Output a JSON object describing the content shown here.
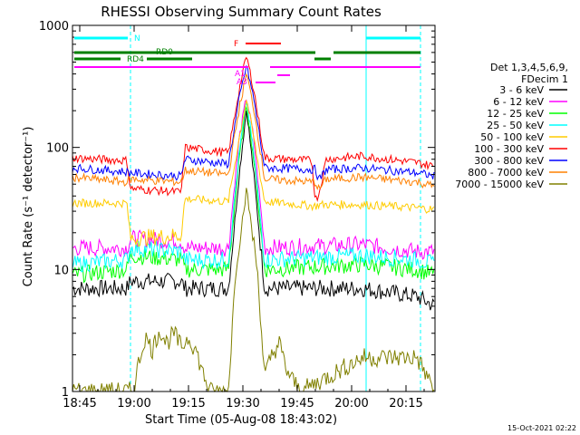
{
  "chart_data": {
    "type": "line",
    "title": "RHESSI Observing Summary Count Rates",
    "xlabel": "Start Time (05-Aug-08 18:43:02)",
    "ylabel": "Count Rate (s⁻¹ detector⁻¹)",
    "y_scale": "log",
    "ylim": [
      1,
      1000
    ],
    "xlim_minutes": [
      0,
      100
    ],
    "x_ticks": [
      {
        "m": 2,
        "label": "18:45"
      },
      {
        "m": 17,
        "label": "19:00"
      },
      {
        "m": 32,
        "label": "19:15"
      },
      {
        "m": 47,
        "label": "19:30"
      },
      {
        "m": 62,
        "label": "19:45"
      },
      {
        "m": 77,
        "label": "20:00"
      },
      {
        "m": 92,
        "label": "20:15"
      }
    ],
    "y_ticks": [
      {
        "v": 1,
        "label": "1"
      },
      {
        "v": 10,
        "label": "10"
      },
      {
        "v": 100,
        "label": "100"
      },
      {
        "v": 1000,
        "label": "1000"
      }
    ],
    "legend_header": [
      "Det 1,3,4,5,6,9,",
      "FDecim 1"
    ],
    "series": [
      {
        "name": "3 - 6 keV",
        "color": "#000000",
        "points": [
          [
            0,
            7
          ],
          [
            15,
            7
          ],
          [
            16,
            8
          ],
          [
            30,
            8
          ],
          [
            31,
            7
          ],
          [
            43,
            7
          ],
          [
            46,
            60
          ],
          [
            48,
            210
          ],
          [
            50,
            60
          ],
          [
            53,
            7
          ],
          [
            80,
            7
          ],
          [
            95,
            6
          ],
          [
            100,
            5
          ]
        ]
      },
      {
        "name": "6 - 12 keV",
        "color": "#ff00ff",
        "points": [
          [
            0,
            15
          ],
          [
            15,
            15
          ],
          [
            16,
            18
          ],
          [
            30,
            17
          ],
          [
            31,
            15
          ],
          [
            43,
            15
          ],
          [
            46,
            120
          ],
          [
            48,
            260
          ],
          [
            50,
            120
          ],
          [
            53,
            15
          ],
          [
            80,
            16
          ],
          [
            95,
            14
          ],
          [
            100,
            14
          ]
        ]
      },
      {
        "name": "12 - 25 keV",
        "color": "#00ff00",
        "points": [
          [
            0,
            9
          ],
          [
            15,
            10
          ],
          [
            16,
            13
          ],
          [
            30,
            12
          ],
          [
            31,
            10
          ],
          [
            43,
            10
          ],
          [
            46,
            80
          ],
          [
            48,
            230
          ],
          [
            50,
            80
          ],
          [
            53,
            10
          ],
          [
            80,
            11
          ],
          [
            95,
            10
          ],
          [
            100,
            9
          ]
        ]
      },
      {
        "name": "25 - 50 keV",
        "color": "#00ffff",
        "points": [
          [
            0,
            11
          ],
          [
            15,
            12
          ],
          [
            16,
            15
          ],
          [
            30,
            14
          ],
          [
            31,
            12
          ],
          [
            43,
            12
          ],
          [
            46,
            90
          ],
          [
            48,
            245
          ],
          [
            50,
            90
          ],
          [
            53,
            12
          ],
          [
            80,
            13
          ],
          [
            95,
            12
          ],
          [
            100,
            11
          ]
        ]
      },
      {
        "name": "50 - 100 keV",
        "color": "#ffcc00",
        "points": [
          [
            0,
            35
          ],
          [
            15,
            35
          ],
          [
            16,
            18
          ],
          [
            30,
            19
          ],
          [
            31,
            38
          ],
          [
            43,
            36
          ],
          [
            46,
            120
          ],
          [
            48,
            250
          ],
          [
            50,
            120
          ],
          [
            53,
            36
          ],
          [
            67,
            33
          ],
          [
            68,
            34
          ],
          [
            80,
            34
          ],
          [
            95,
            32
          ],
          [
            100,
            31
          ]
        ]
      },
      {
        "name": "100 - 300 keV",
        "color": "#ff0000",
        "points": [
          [
            0,
            82
          ],
          [
            15,
            78
          ],
          [
            16,
            46
          ],
          [
            30,
            43
          ],
          [
            31,
            100
          ],
          [
            43,
            90
          ],
          [
            46,
            300
          ],
          [
            48,
            560
          ],
          [
            50,
            300
          ],
          [
            53,
            82
          ],
          [
            66,
            78
          ],
          [
            67,
            37
          ],
          [
            68,
            42
          ],
          [
            70,
            80
          ],
          [
            80,
            85
          ],
          [
            95,
            75
          ],
          [
            100,
            70
          ]
        ]
      },
      {
        "name": "300 - 800 keV",
        "color": "#0000ff",
        "points": [
          [
            0,
            68
          ],
          [
            15,
            63
          ],
          [
            16,
            62
          ],
          [
            30,
            58
          ],
          [
            31,
            80
          ],
          [
            43,
            73
          ],
          [
            46,
            250
          ],
          [
            48,
            470
          ],
          [
            50,
            250
          ],
          [
            53,
            68
          ],
          [
            67,
            66
          ],
          [
            68,
            54
          ],
          [
            70,
            66
          ],
          [
            80,
            68
          ],
          [
            95,
            62
          ],
          [
            100,
            58
          ]
        ]
      },
      {
        "name": "800 - 7000 keV",
        "color": "#ff8000",
        "points": [
          [
            0,
            57
          ],
          [
            15,
            52
          ],
          [
            16,
            55
          ],
          [
            30,
            52
          ],
          [
            31,
            65
          ],
          [
            43,
            60
          ],
          [
            46,
            210
          ],
          [
            48,
            400
          ],
          [
            50,
            210
          ],
          [
            53,
            55
          ],
          [
            67,
            52
          ],
          [
            68,
            45
          ],
          [
            70,
            55
          ],
          [
            80,
            57
          ],
          [
            95,
            52
          ],
          [
            100,
            48
          ]
        ]
      },
      {
        "name": "7000 - 15000 keV",
        "color": "#808000",
        "points": [
          [
            0,
            1
          ],
          [
            17,
            1
          ],
          [
            18,
            1.6
          ],
          [
            20,
            2.8
          ],
          [
            22,
            2.2
          ],
          [
            24,
            3.2
          ],
          [
            26,
            2.5
          ],
          [
            28,
            3
          ],
          [
            30,
            2.3
          ],
          [
            32,
            2.8
          ],
          [
            34,
            2.2
          ],
          [
            36,
            1.4
          ],
          [
            38,
            1
          ],
          [
            43,
            1
          ],
          [
            45,
            10
          ],
          [
            48,
            45
          ],
          [
            51,
            10
          ],
          [
            53,
            1.3
          ],
          [
            55,
            2
          ],
          [
            57,
            2.5
          ],
          [
            59,
            1.5
          ],
          [
            61,
            1.2
          ],
          [
            63,
            1
          ],
          [
            80,
            1.9
          ],
          [
            95,
            1.9
          ],
          [
            100,
            1
          ]
        ]
      }
    ],
    "annotations": {
      "N": {
        "label": "N"
      },
      "F": {
        "label": "F"
      },
      "RD0": {
        "label": "RD0"
      },
      "RD4": {
        "label": "RD4"
      },
      "A1": {
        "label": "A1"
      },
      "A3": {
        "label": "A3"
      }
    },
    "timestamp": "15-Oct-2021 02:22"
  }
}
